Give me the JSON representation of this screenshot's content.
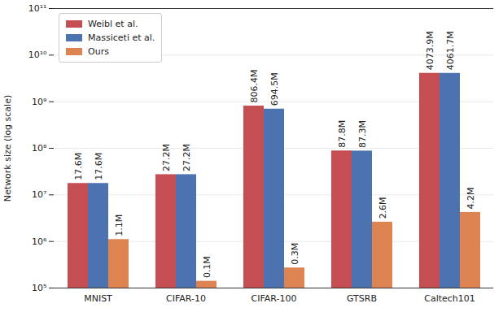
{
  "chart_data": {
    "type": "bar",
    "ylabel": "Network size (log scale)",
    "categories": [
      "MNIST",
      "CIFAR-10",
      "CIFAR-100",
      "GTSRB",
      "Caltech101"
    ],
    "series": [
      {
        "name": "Weibl et al.",
        "color": "#c44e52",
        "values": [
          17600000,
          27200000,
          806400000,
          87800000,
          4073900000
        ],
        "value_labels": [
          "17.6M",
          "27.2M",
          "806.4M",
          "87.8M",
          "4073.9M"
        ]
      },
      {
        "name": "Massiceti et al.",
        "color": "#4c72b0",
        "values": [
          17600000,
          27200000,
          694500000,
          87300000,
          4061700000
        ],
        "value_labels": [
          "17.6M",
          "27.2M",
          "694.5M",
          "87.3M",
          "4061.7M"
        ]
      },
      {
        "name": "Ours",
        "color": "#dd8452",
        "values": [
          1100000,
          140000,
          270000,
          2600000,
          4200000
        ],
        "value_labels": [
          "1.1M",
          "0.1M",
          "0.3M",
          "2.6M",
          "4.2M"
        ]
      }
    ],
    "ylim": [
      100000,
      100000000000
    ],
    "yticks": [
      {
        "value": 100000,
        "label": "10⁵"
      },
      {
        "value": 1000000,
        "label": "10⁶"
      },
      {
        "value": 10000000,
        "label": "10⁷"
      },
      {
        "value": 100000000,
        "label": "10⁸"
      },
      {
        "value": 1000000000,
        "label": "10⁹"
      },
      {
        "value": 10000000000,
        "label": "10¹⁰"
      },
      {
        "value": 100000000000,
        "label": "10¹¹"
      }
    ],
    "log": "y",
    "grid": true,
    "legend": "upper left",
    "data_labels": true
  }
}
